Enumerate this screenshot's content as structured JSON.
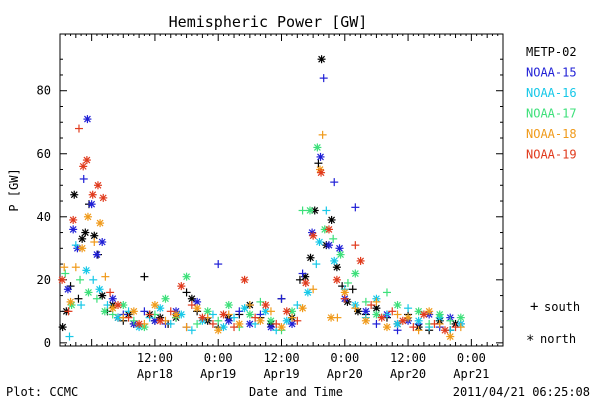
{
  "chart_data": {
    "type": "scatter",
    "title": "Hemispheric Power [GW]",
    "xlabel": "Date and Time",
    "ylabel": "P [GW]",
    "x_unit": "hours",
    "xlim": [
      -6,
      78
    ],
    "ylim": [
      -1,
      98
    ],
    "yticks": [
      0,
      20,
      40,
      60,
      80
    ],
    "xticks": [
      {
        "x": 12,
        "time": "12:00",
        "date": "Apr18"
      },
      {
        "x": 24,
        "time": "0:00",
        "date": "Apr19"
      },
      {
        "x": 36,
        "time": "12:00",
        "date": "Apr19"
      },
      {
        "x": 48,
        "time": "0:00",
        "date": "Apr20"
      },
      {
        "x": 60,
        "time": "12:00",
        "date": "Apr20"
      },
      {
        "x": 72,
        "time": "0:00",
        "date": "Apr21"
      }
    ],
    "legend_position": "right",
    "marker_legend": {
      "south_symbol": "+",
      "south": "south",
      "north_symbol": "*",
      "north": "north"
    },
    "series": [
      {
        "name": "METP-02",
        "color": "#000000"
      },
      {
        "name": "NOAA-15",
        "color": "#1f1fd6"
      },
      {
        "name": "NOAA-16",
        "color": "#16c8e8"
      },
      {
        "name": "NOAA-17",
        "color": "#3de07a"
      },
      {
        "name": "NOAA-18",
        "color": "#f09a1a"
      },
      {
        "name": "NOAA-19",
        "color": "#e03a1c"
      }
    ],
    "points": [
      [
        -5.5,
        5,
        0,
        "n"
      ],
      [
        -4.8,
        10,
        0,
        "n"
      ],
      [
        -4,
        18,
        0,
        "s"
      ],
      [
        -3.3,
        47,
        0,
        "n"
      ],
      [
        -2.5,
        14,
        0,
        "s"
      ],
      [
        -1.8,
        33,
        0,
        "n"
      ],
      [
        -1.2,
        35,
        0,
        "n"
      ],
      [
        -0.5,
        44,
        0,
        "s"
      ],
      [
        0.5,
        34,
        0,
        "n"
      ],
      [
        1.2,
        28,
        0,
        "s"
      ],
      [
        2,
        15,
        0,
        "n"
      ],
      [
        3,
        10,
        0,
        "s"
      ],
      [
        4,
        12,
        0,
        "n"
      ],
      [
        5,
        8,
        0,
        "n"
      ],
      [
        6,
        7,
        0,
        "s"
      ],
      [
        7,
        9,
        0,
        "n"
      ],
      [
        8,
        6,
        0,
        "s"
      ],
      [
        10,
        21,
        0,
        "s"
      ],
      [
        11,
        9,
        0,
        "n"
      ],
      [
        12,
        7,
        0,
        "s"
      ],
      [
        13,
        8,
        0,
        "n"
      ],
      [
        14.5,
        6,
        0,
        "s"
      ],
      [
        16,
        8,
        0,
        "n"
      ],
      [
        18,
        16,
        0,
        "s"
      ],
      [
        19,
        14,
        0,
        "n"
      ],
      [
        20,
        10,
        0,
        "s"
      ],
      [
        22,
        7,
        0,
        "n"
      ],
      [
        24,
        5,
        0,
        "s"
      ],
      [
        26,
        8,
        0,
        "n"
      ],
      [
        28,
        9,
        0,
        "s"
      ],
      [
        30,
        12,
        0,
        "n"
      ],
      [
        32,
        8,
        0,
        "s"
      ],
      [
        34,
        6,
        0,
        "n"
      ],
      [
        36,
        14,
        0,
        "s"
      ],
      [
        38,
        8,
        0,
        "n"
      ],
      [
        39.5,
        20,
        0,
        "s"
      ],
      [
        40.5,
        21,
        0,
        "n"
      ],
      [
        41.5,
        27,
        0,
        "n"
      ],
      [
        42.3,
        42,
        0,
        "n"
      ],
      [
        43,
        57,
        0,
        "s"
      ],
      [
        43.6,
        90,
        0,
        "n"
      ],
      [
        44.5,
        31,
        0,
        "n"
      ],
      [
        45.5,
        39,
        0,
        "n"
      ],
      [
        46.5,
        24,
        0,
        "n"
      ],
      [
        47.5,
        18,
        0,
        "s"
      ],
      [
        48.5,
        13,
        0,
        "n"
      ],
      [
        49.5,
        17,
        0,
        "s"
      ],
      [
        50.5,
        10,
        0,
        "n"
      ],
      [
        52,
        9,
        0,
        "s"
      ],
      [
        54,
        11,
        0,
        "n"
      ],
      [
        56,
        8,
        0,
        "s"
      ],
      [
        58,
        6,
        0,
        "n"
      ],
      [
        60,
        9,
        0,
        "s"
      ],
      [
        62,
        5,
        0,
        "n"
      ],
      [
        64,
        4,
        0,
        "s"
      ],
      [
        66,
        7,
        0,
        "n"
      ],
      [
        68,
        4,
        0,
        "s"
      ],
      [
        69,
        6,
        0,
        "n"
      ],
      [
        -4.5,
        17,
        1,
        "n"
      ],
      [
        -3.5,
        36,
        1,
        "n"
      ],
      [
        -2.7,
        30,
        1,
        "n"
      ],
      [
        -1.5,
        52,
        1,
        "s"
      ],
      [
        -0.8,
        71,
        1,
        "n"
      ],
      [
        0,
        44,
        1,
        "n"
      ],
      [
        1,
        28,
        1,
        "n"
      ],
      [
        2,
        32,
        1,
        "n"
      ],
      [
        4,
        14,
        1,
        "n"
      ],
      [
        6,
        9,
        1,
        "s"
      ],
      [
        8,
        6,
        1,
        "n"
      ],
      [
        10,
        10,
        1,
        "s"
      ],
      [
        12,
        7,
        1,
        "n"
      ],
      [
        14,
        6,
        1,
        "s"
      ],
      [
        16,
        10,
        1,
        "n"
      ],
      [
        18,
        5,
        1,
        "s"
      ],
      [
        20,
        13,
        1,
        "n"
      ],
      [
        22,
        8,
        1,
        "s"
      ],
      [
        24,
        25,
        1,
        "s"
      ],
      [
        26,
        7,
        1,
        "n"
      ],
      [
        28,
        10,
        1,
        "s"
      ],
      [
        30,
        6,
        1,
        "n"
      ],
      [
        32,
        9,
        1,
        "s"
      ],
      [
        34,
        5,
        1,
        "n"
      ],
      [
        36,
        14,
        1,
        "s"
      ],
      [
        38,
        6,
        1,
        "n"
      ],
      [
        40,
        22,
        1,
        "s"
      ],
      [
        41.8,
        35,
        1,
        "n"
      ],
      [
        43.4,
        59,
        1,
        "n"
      ],
      [
        44,
        84,
        1,
        "s"
      ],
      [
        45,
        31,
        1,
        "n"
      ],
      [
        46,
        51,
        1,
        "s"
      ],
      [
        47,
        30,
        1,
        "n"
      ],
      [
        48,
        14,
        1,
        "n"
      ],
      [
        50,
        43,
        1,
        "s"
      ],
      [
        52,
        10,
        1,
        "n"
      ],
      [
        54,
        6,
        1,
        "s"
      ],
      [
        56,
        9,
        1,
        "n"
      ],
      [
        58,
        4,
        1,
        "s"
      ],
      [
        60,
        7,
        1,
        "n"
      ],
      [
        62,
        6,
        1,
        "s"
      ],
      [
        64,
        9,
        1,
        "n"
      ],
      [
        66,
        5,
        1,
        "s"
      ],
      [
        68,
        8,
        1,
        "n"
      ],
      [
        70,
        6,
        1,
        "s"
      ],
      [
        -4.2,
        2,
        2,
        "s"
      ],
      [
        -3,
        31,
        2,
        "s"
      ],
      [
        -2,
        12,
        2,
        "s"
      ],
      [
        -1,
        23,
        2,
        "n"
      ],
      [
        0.3,
        20,
        2,
        "s"
      ],
      [
        1.5,
        17,
        2,
        "n"
      ],
      [
        3,
        12,
        2,
        "s"
      ],
      [
        5,
        8,
        2,
        "n"
      ],
      [
        7,
        10,
        2,
        "s"
      ],
      [
        9,
        5,
        2,
        "n"
      ],
      [
        11,
        8,
        2,
        "s"
      ],
      [
        13,
        11,
        2,
        "n"
      ],
      [
        15,
        6,
        2,
        "s"
      ],
      [
        17,
        9,
        2,
        "n"
      ],
      [
        19,
        4,
        2,
        "s"
      ],
      [
        21,
        7,
        2,
        "n"
      ],
      [
        23,
        9,
        2,
        "s"
      ],
      [
        25,
        5,
        2,
        "n"
      ],
      [
        27,
        8,
        2,
        "s"
      ],
      [
        29,
        11,
        2,
        "n"
      ],
      [
        31,
        6,
        2,
        "s"
      ],
      [
        33,
        10,
        2,
        "n"
      ],
      [
        35,
        4,
        2,
        "s"
      ],
      [
        37,
        7,
        2,
        "n"
      ],
      [
        39,
        12,
        2,
        "s"
      ],
      [
        41,
        16,
        2,
        "n"
      ],
      [
        42.6,
        25,
        2,
        "s"
      ],
      [
        43.2,
        32,
        2,
        "n"
      ],
      [
        44.5,
        42,
        2,
        "s"
      ],
      [
        46,
        26,
        2,
        "n"
      ],
      [
        48,
        17,
        2,
        "s"
      ],
      [
        50,
        12,
        2,
        "n"
      ],
      [
        52,
        8,
        2,
        "s"
      ],
      [
        54,
        14,
        2,
        "n"
      ],
      [
        56,
        9,
        2,
        "s"
      ],
      [
        58,
        6,
        2,
        "n"
      ],
      [
        60,
        11,
        2,
        "s"
      ],
      [
        62,
        7,
        2,
        "n"
      ],
      [
        64,
        5,
        2,
        "s"
      ],
      [
        66,
        8,
        2,
        "n"
      ],
      [
        68,
        4,
        2,
        "s"
      ],
      [
        70,
        6,
        2,
        "n"
      ],
      [
        -5,
        22,
        3,
        "s"
      ],
      [
        -3.8,
        12,
        3,
        "n"
      ],
      [
        -2.2,
        20,
        3,
        "s"
      ],
      [
        -0.6,
        16,
        3,
        "n"
      ],
      [
        1,
        14,
        3,
        "s"
      ],
      [
        2.5,
        10,
        3,
        "n"
      ],
      [
        4,
        9,
        3,
        "s"
      ],
      [
        6,
        12,
        3,
        "n"
      ],
      [
        8,
        7,
        3,
        "s"
      ],
      [
        10,
        5,
        3,
        "n"
      ],
      [
        12,
        9,
        3,
        "s"
      ],
      [
        14,
        14,
        3,
        "n"
      ],
      [
        16,
        8,
        3,
        "s"
      ],
      [
        18,
        21,
        3,
        "n"
      ],
      [
        20,
        6,
        3,
        "s"
      ],
      [
        22,
        10,
        3,
        "n"
      ],
      [
        24,
        7,
        3,
        "s"
      ],
      [
        26,
        12,
        3,
        "n"
      ],
      [
        28,
        5,
        3,
        "s"
      ],
      [
        30,
        9,
        3,
        "n"
      ],
      [
        32,
        13,
        3,
        "s"
      ],
      [
        34,
        7,
        3,
        "n"
      ],
      [
        36,
        4,
        3,
        "s"
      ],
      [
        38,
        10,
        3,
        "n"
      ],
      [
        40,
        42,
        3,
        "s"
      ],
      [
        41.4,
        42,
        3,
        "n"
      ],
      [
        42.8,
        62,
        3,
        "n"
      ],
      [
        44.2,
        36,
        3,
        "n"
      ],
      [
        45.8,
        33,
        3,
        "s"
      ],
      [
        47.2,
        28,
        3,
        "n"
      ],
      [
        48.6,
        19,
        3,
        "s"
      ],
      [
        50,
        22,
        3,
        "n"
      ],
      [
        52,
        13,
        3,
        "s"
      ],
      [
        54,
        9,
        3,
        "n"
      ],
      [
        56,
        16,
        3,
        "s"
      ],
      [
        58,
        12,
        3,
        "n"
      ],
      [
        60,
        8,
        3,
        "s"
      ],
      [
        62,
        10,
        3,
        "n"
      ],
      [
        64,
        6,
        3,
        "s"
      ],
      [
        66,
        9,
        3,
        "n"
      ],
      [
        68,
        7,
        3,
        "s"
      ],
      [
        70,
        8,
        3,
        "n"
      ],
      [
        -5.2,
        24,
        4,
        "s"
      ],
      [
        -4,
        13,
        4,
        "n"
      ],
      [
        -3,
        24,
        4,
        "s"
      ],
      [
        -1.8,
        30,
        4,
        "n"
      ],
      [
        -0.7,
        40,
        4,
        "n"
      ],
      [
        0.5,
        32,
        4,
        "s"
      ],
      [
        1.6,
        38,
        4,
        "n"
      ],
      [
        2.6,
        21,
        4,
        "s"
      ],
      [
        4,
        11,
        4,
        "n"
      ],
      [
        6,
        8,
        4,
        "s"
      ],
      [
        8,
        10,
        4,
        "n"
      ],
      [
        10,
        6,
        4,
        "s"
      ],
      [
        12,
        12,
        4,
        "n"
      ],
      [
        14,
        7,
        4,
        "s"
      ],
      [
        16,
        9,
        4,
        "n"
      ],
      [
        18,
        5,
        4,
        "s"
      ],
      [
        20,
        11,
        4,
        "n"
      ],
      [
        22,
        8,
        4,
        "s"
      ],
      [
        24,
        4,
        4,
        "n"
      ],
      [
        26,
        9,
        4,
        "s"
      ],
      [
        28,
        6,
        4,
        "n"
      ],
      [
        30,
        12,
        4,
        "s"
      ],
      [
        32,
        7,
        4,
        "n"
      ],
      [
        34,
        10,
        4,
        "s"
      ],
      [
        36,
        5,
        4,
        "n"
      ],
      [
        38,
        8,
        4,
        "s"
      ],
      [
        40,
        11,
        4,
        "n"
      ],
      [
        42,
        17,
        4,
        "s"
      ],
      [
        43.3,
        55,
        4,
        "n"
      ],
      [
        43.8,
        66,
        4,
        "s"
      ],
      [
        45.4,
        8,
        4,
        "n"
      ],
      [
        46.6,
        8,
        4,
        "s"
      ],
      [
        48,
        16,
        4,
        "n"
      ],
      [
        50,
        11,
        4,
        "s"
      ],
      [
        52,
        7,
        4,
        "n"
      ],
      [
        54,
        13,
        4,
        "s"
      ],
      [
        56,
        5,
        4,
        "n"
      ],
      [
        58,
        9,
        4,
        "s"
      ],
      [
        60,
        8,
        4,
        "n"
      ],
      [
        62,
        4,
        4,
        "s"
      ],
      [
        64,
        10,
        4,
        "n"
      ],
      [
        66,
        6,
        4,
        "s"
      ],
      [
        68,
        2,
        4,
        "n"
      ],
      [
        70,
        5,
        4,
        "s"
      ],
      [
        -5.6,
        20,
        5,
        "n"
      ],
      [
        -4.4,
        10,
        5,
        "s"
      ],
      [
        -3.5,
        39,
        5,
        "n"
      ],
      [
        -2.4,
        68,
        5,
        "s"
      ],
      [
        -1.6,
        56,
        5,
        "n"
      ],
      [
        -0.9,
        58,
        5,
        "n"
      ],
      [
        0.2,
        47,
        5,
        "n"
      ],
      [
        1.2,
        50,
        5,
        "n"
      ],
      [
        2.2,
        46,
        5,
        "n"
      ],
      [
        3.5,
        16,
        5,
        "s"
      ],
      [
        5,
        12,
        5,
        "n"
      ],
      [
        7,
        8,
        5,
        "s"
      ],
      [
        9,
        6,
        5,
        "n"
      ],
      [
        11,
        9,
        5,
        "s"
      ],
      [
        13,
        7,
        5,
        "n"
      ],
      [
        15,
        10,
        5,
        "s"
      ],
      [
        17,
        18,
        5,
        "n"
      ],
      [
        19,
        12,
        5,
        "s"
      ],
      [
        21,
        8,
        5,
        "n"
      ],
      [
        23,
        6,
        5,
        "s"
      ],
      [
        25,
        9,
        5,
        "n"
      ],
      [
        27,
        5,
        5,
        "s"
      ],
      [
        29,
        20,
        5,
        "n"
      ],
      [
        31,
        8,
        5,
        "s"
      ],
      [
        33,
        12,
        5,
        "n"
      ],
      [
        35,
        6,
        5,
        "s"
      ],
      [
        37,
        10,
        5,
        "n"
      ],
      [
        39,
        7,
        5,
        "s"
      ],
      [
        40.6,
        19,
        5,
        "n"
      ],
      [
        42,
        34,
        5,
        "n"
      ],
      [
        43.5,
        54,
        5,
        "n"
      ],
      [
        45,
        36,
        5,
        "n"
      ],
      [
        46.5,
        20,
        5,
        "n"
      ],
      [
        48,
        14,
        5,
        "s"
      ],
      [
        50,
        31,
        5,
        "s"
      ],
      [
        51,
        26,
        5,
        "n"
      ],
      [
        53,
        12,
        5,
        "s"
      ],
      [
        55,
        8,
        5,
        "n"
      ],
      [
        57,
        10,
        5,
        "s"
      ],
      [
        59,
        7,
        5,
        "n"
      ],
      [
        61,
        5,
        5,
        "s"
      ],
      [
        63,
        9,
        5,
        "n"
      ],
      [
        65,
        6,
        5,
        "s"
      ],
      [
        67,
        4,
        5,
        "n"
      ],
      [
        69,
        5,
        5,
        "s"
      ]
    ]
  },
  "footer": {
    "plot_credit": "Plot: CCMC",
    "timestamp": "2011/04/21 06:25:08"
  }
}
